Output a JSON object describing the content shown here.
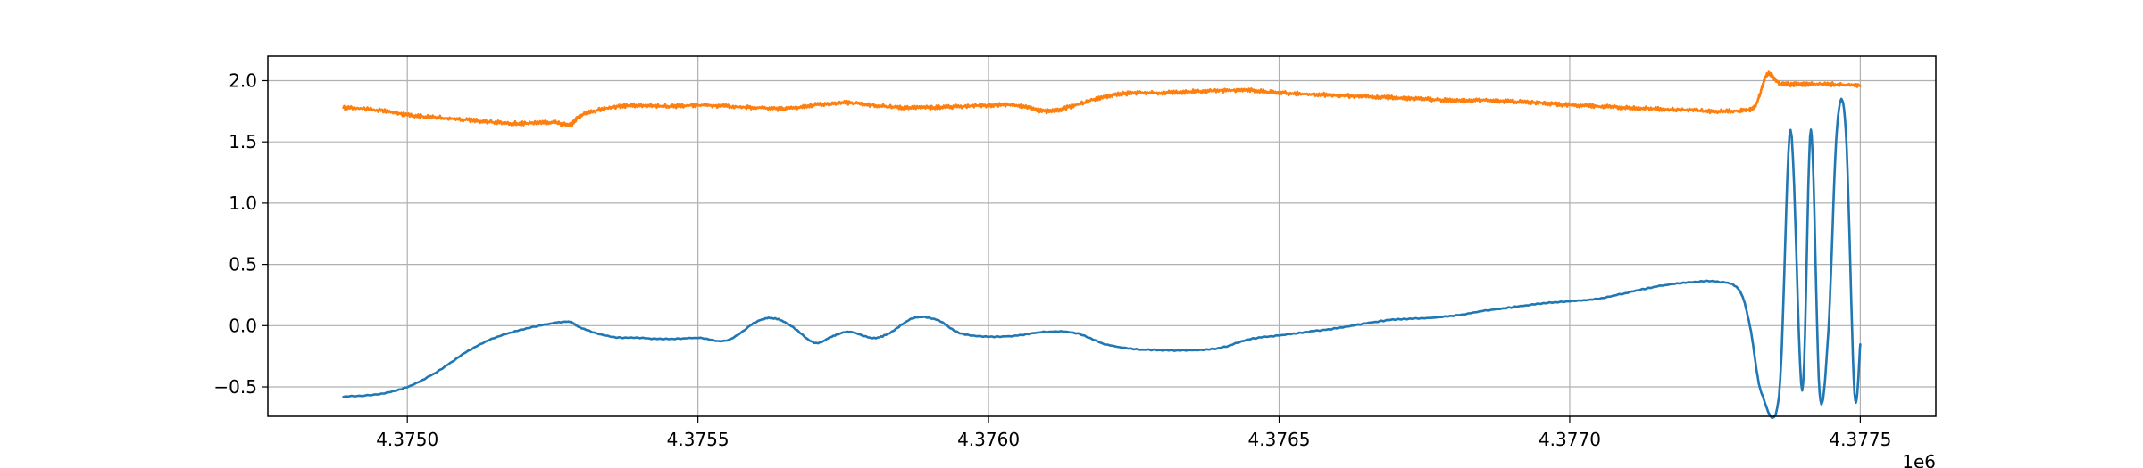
{
  "chart_data": {
    "type": "line",
    "title": "",
    "xlabel": "",
    "ylabel": "",
    "x_offset_label": "1e6",
    "xlim": [
      4374760,
      4377630
    ],
    "ylim": [
      -0.74,
      2.2
    ],
    "grid": true,
    "x_ticks": [
      4375000,
      4375500,
      4376000,
      4376500,
      4377000,
      4377500
    ],
    "x_tick_labels": [
      "4.3750",
      "4.3755",
      "4.3760",
      "4.3765",
      "4.3770",
      "4.3775"
    ],
    "y_ticks": [
      -0.5,
      0.0,
      0.5,
      1.0,
      1.5,
      2.0
    ],
    "y_tick_labels": [
      "−0.5",
      "0.0",
      "0.5",
      "1.0",
      "1.5",
      "2.0"
    ],
    "series": [
      {
        "color": "#1f77b4",
        "x": [
          4374890,
          4374950,
          4375000,
          4375050,
          4375100,
          4375150,
          4375200,
          4375250,
          4375280,
          4375300,
          4375350,
          4375400,
          4375450,
          4375500,
          4375550,
          4375600,
          4375630,
          4375660,
          4375700,
          4375730,
          4375760,
          4375800,
          4375830,
          4375870,
          4375910,
          4375950,
          4376000,
          4376050,
          4376100,
          4376150,
          4376200,
          4376250,
          4376300,
          4376350,
          4376400,
          4376450,
          4376500,
          4376550,
          4376600,
          4376650,
          4376700,
          4376750,
          4376800,
          4376850,
          4376900,
          4376950,
          4377000,
          4377050,
          4377100,
          4377150,
          4377200,
          4377250,
          4377290,
          4377310,
          4377330,
          4377360,
          4377380,
          4377400,
          4377415,
          4377430,
          4377445,
          4377460,
          4377475,
          4377490,
          4377500
        ],
        "y": [
          -0.58,
          -0.56,
          -0.5,
          -0.38,
          -0.22,
          -0.1,
          -0.03,
          0.02,
          0.03,
          -0.02,
          -0.09,
          -0.1,
          -0.11,
          -0.1,
          -0.12,
          0.03,
          0.06,
          0.0,
          -0.14,
          -0.09,
          -0.05,
          -0.1,
          -0.06,
          0.06,
          0.05,
          -0.06,
          -0.09,
          -0.08,
          -0.05,
          -0.06,
          -0.15,
          -0.19,
          -0.2,
          -0.2,
          -0.18,
          -0.11,
          -0.08,
          -0.05,
          -0.02,
          0.02,
          0.05,
          0.06,
          0.08,
          0.12,
          0.15,
          0.18,
          0.2,
          0.22,
          0.27,
          0.32,
          0.35,
          0.36,
          0.3,
          0.0,
          -0.55,
          -0.58,
          1.6,
          -0.53,
          1.6,
          -0.55,
          -0.05,
          1.62,
          1.6,
          -0.55,
          -0.15
        ]
      },
      {
        "color": "#ff7f0e",
        "x": [
          4374890,
          4374950,
          4375000,
          4375050,
          4375100,
          4375150,
          4375200,
          4375250,
          4375280,
          4375300,
          4375350,
          4375400,
          4375450,
          4375500,
          4375550,
          4375600,
          4375650,
          4375700,
          4375750,
          4375800,
          4375850,
          4375900,
          4375950,
          4376000,
          4376050,
          4376100,
          4376150,
          4376200,
          4376250,
          4376300,
          4376350,
          4376400,
          4376450,
          4376500,
          4376550,
          4376600,
          4376650,
          4376700,
          4376750,
          4376800,
          4376850,
          4376900,
          4376950,
          4377000,
          4377050,
          4377100,
          4377150,
          4377200,
          4377250,
          4377300,
          4377320,
          4377340,
          4377360,
          4377380,
          4377400,
          4377450,
          4377500
        ],
        "y": [
          1.78,
          1.76,
          1.72,
          1.7,
          1.68,
          1.66,
          1.65,
          1.66,
          1.64,
          1.72,
          1.78,
          1.8,
          1.79,
          1.8,
          1.79,
          1.78,
          1.77,
          1.8,
          1.82,
          1.8,
          1.78,
          1.78,
          1.79,
          1.8,
          1.8,
          1.75,
          1.8,
          1.87,
          1.9,
          1.9,
          1.91,
          1.92,
          1.92,
          1.9,
          1.89,
          1.88,
          1.87,
          1.86,
          1.85,
          1.84,
          1.84,
          1.83,
          1.82,
          1.8,
          1.79,
          1.78,
          1.77,
          1.76,
          1.75,
          1.76,
          1.8,
          2.05,
          1.98,
          1.97,
          1.97,
          1.97,
          1.96
        ]
      }
    ]
  }
}
